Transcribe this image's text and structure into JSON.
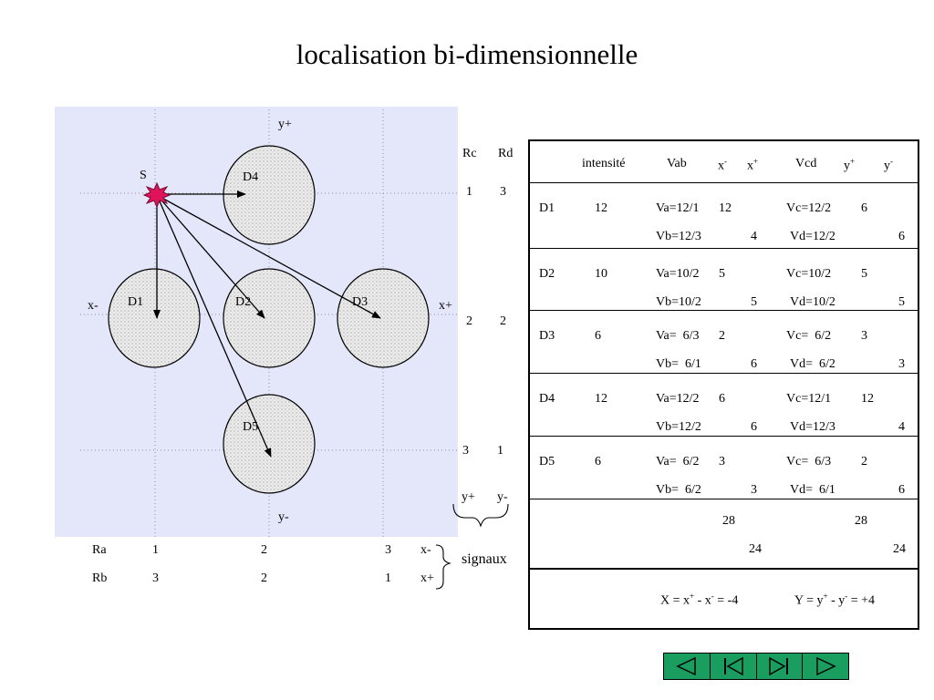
{
  "title": "localisation bi-dimensionnelle",
  "diagram": {
    "source": "S",
    "detectors": [
      "D1",
      "D2",
      "D3",
      "D4",
      "D5"
    ],
    "axes": {
      "y_plus": "y+",
      "y_minus": "y-",
      "x_minus": "x-",
      "x_plus": "x+"
    },
    "rc_header": "Rc",
    "rd_header": "Rd",
    "rc_values": [
      "1",
      "2",
      "3"
    ],
    "rd_values": [
      "3",
      "2",
      "1"
    ],
    "y_signals": [
      "y+",
      "y-"
    ],
    "ra_label": "Ra",
    "rb_label": "Rb",
    "ra_values": [
      "1",
      "2",
      "3"
    ],
    "rb_values": [
      "3",
      "2",
      "1"
    ],
    "x_signals": [
      "x-",
      "x+"
    ],
    "signaux": "signaux"
  },
  "table": {
    "header": {
      "intensite": "intensité",
      "vab": "Vab",
      "x_minus": "x",
      "x_plus": "x",
      "vcd": "Vcd",
      "y_plus": "y",
      "y_minus": "y"
    },
    "rows": [
      {
        "det": "D1",
        "int": "12",
        "va": "Va=12/1",
        "x_minus": "12",
        "x_plus": "",
        "vc": "Vc=12/2",
        "y_plus": "6",
        "y_minus": "",
        "vb": "Vb=12/3",
        "vb_x_minus": "",
        "vb_x_plus": "4",
        "vd": "Vd=12/2",
        "vd_y_plus": "",
        "vd_y_minus": "6"
      },
      {
        "det": "D2",
        "int": "10",
        "va": "Va=10/2",
        "x_minus": "5",
        "x_plus": "",
        "vc": "Vc=10/2",
        "y_plus": "5",
        "y_minus": "",
        "vb": "Vb=10/2",
        "vb_x_minus": "",
        "vb_x_plus": "5",
        "vd": "Vd=10/2",
        "vd_y_plus": "",
        "vd_y_minus": "5"
      },
      {
        "det": "D3",
        "int": "6",
        "va": "Va=  6/3",
        "x_minus": "2",
        "x_plus": "",
        "vc": "Vc=  6/2",
        "y_plus": "3",
        "y_minus": "",
        "vb": "Vb=  6/1",
        "vb_x_minus": "",
        "vb_x_plus": "6",
        "vd": "Vd=  6/2",
        "vd_y_plus": "",
        "vd_y_minus": "3"
      },
      {
        "det": "D4",
        "int": "12",
        "va": "Va=12/2",
        "x_minus": "6",
        "x_plus": "",
        "vc": "Vc=12/1",
        "y_plus": "12",
        "y_minus": "",
        "vb": "Vb=12/2",
        "vb_x_minus": "",
        "vb_x_plus": "6",
        "vd": "Vd=12/3",
        "vd_y_plus": "",
        "vd_y_minus": "4"
      },
      {
        "det": "D5",
        "int": "6",
        "va": "Va=  6/2",
        "x_minus": "3",
        "x_plus": "",
        "vc": "Vc=  6/3",
        "y_plus": "2",
        "y_minus": "",
        "vb": "Vb=  6/2",
        "vb_x_minus": "",
        "vb_x_plus": "3",
        "vd": "Vd=  6/1",
        "vd_y_plus": "",
        "vd_y_minus": "6"
      }
    ],
    "totals": {
      "x_minus": "28",
      "y_plus": "28",
      "x_plus": "24",
      "y_minus": "24"
    },
    "result": {
      "x_text": "X  =  x",
      "x_mid": " -   x",
      "x_end": " = -4",
      "y_text": "Y = y",
      "y_mid": " - y",
      "y_end": " = +4"
    }
  },
  "nav": [
    "nav-first",
    "nav-prev",
    "nav-next",
    "nav-last"
  ]
}
